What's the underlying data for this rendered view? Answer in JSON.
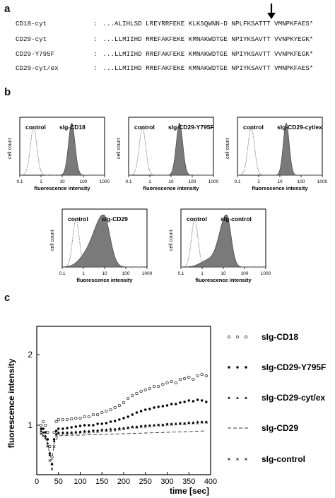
{
  "panels": {
    "a": "a",
    "b": "b",
    "c": "c"
  },
  "sequences": [
    {
      "name": "CD18-cyt",
      "colon": ":",
      "seq": "...ALIHLSD LREYRRFEKE KLKSQWNN-D NPLFKSATTT VMNPKFAES*"
    },
    {
      "name": "CD29-cyt",
      "colon": ":",
      "seq": "...LLMIIHD RREFAKFEKE KMNAKWDTGE NPIYKSAVTT VVNPKYEGK*"
    },
    {
      "name": "CD29-Y795F",
      "colon": ":",
      "seq": "...LLMIIHD RREFAKFEKE KMNAKWDTGE NPIYKSAVTT VVNPKFEGK*"
    },
    {
      "name": "CD29-cyt/ex",
      "colon": ":",
      "seq": "...LLMIIHD RREFAKFEKE KMNAKWDTGE NPIYKSAVTT VMNPKFAES*"
    }
  ],
  "histograms": [
    {
      "id": "h1",
      "control_label": "control",
      "sample_label": "sIg-CD18",
      "peak_log": 1.45,
      "width": 0.22,
      "skew": 0
    },
    {
      "id": "h2",
      "control_label": "control",
      "sample_label": "sIg-CD29-Y795F",
      "peak_log": 1.4,
      "width": 0.22,
      "skew": 0
    },
    {
      "id": "h3",
      "control_label": "control",
      "sample_label": "sIg-CD29-cyt/ex",
      "peak_log": 1.3,
      "width": 0.2,
      "skew": 0
    },
    {
      "id": "h4",
      "control_label": "control",
      "sample_label": "sIg-CD29",
      "peak_log": 0.95,
      "width": 0.42,
      "skew": 1
    },
    {
      "id": "h5",
      "control_label": "control",
      "sample_label": "sIg-control",
      "peak_log": 1.15,
      "width": 0.3,
      "skew": 1
    }
  ],
  "hist_axes": {
    "ylabel": "cell count",
    "xlabel": "fluorescence intensity",
    "ticks": [
      "0.1",
      "1",
      "10",
      "100",
      "1000"
    ]
  },
  "chart_data": {
    "type": "line",
    "xlabel": "time [sec]",
    "ylabel": "fluorescence intensity",
    "xlim": [
      0,
      400
    ],
    "ylim": [
      0.3,
      2.4
    ],
    "xticks": [
      0,
      50,
      100,
      150,
      200,
      250,
      300,
      350,
      400
    ],
    "yticks": [
      1,
      2
    ],
    "series": [
      {
        "name": "sIg-CD18",
        "marker": "open-circle",
        "x": [
          10,
          15,
          20,
          25,
          30,
          35,
          40,
          45,
          50,
          60,
          70,
          80,
          90,
          100,
          110,
          120,
          130,
          140,
          150,
          160,
          170,
          180,
          190,
          200,
          210,
          220,
          230,
          240,
          250,
          260,
          270,
          280,
          290,
          300,
          310,
          320,
          330,
          340,
          350,
          360,
          370,
          380,
          390
        ],
        "y": [
          1.0,
          1.05,
          1.0,
          0.9,
          0.7,
          0.55,
          0.9,
          1.05,
          1.08,
          1.08,
          1.08,
          1.09,
          1.1,
          1.1,
          1.12,
          1.12,
          1.15,
          1.15,
          1.18,
          1.2,
          1.22,
          1.25,
          1.28,
          1.32,
          1.38,
          1.42,
          1.45,
          1.48,
          1.5,
          1.52,
          1.55,
          1.55,
          1.58,
          1.6,
          1.62,
          1.6,
          1.65,
          1.66,
          1.68,
          1.65,
          1.7,
          1.72,
          1.7
        ]
      },
      {
        "name": "sIg-CD29-Y795F",
        "marker": "filled-dot",
        "x": [
          10,
          15,
          20,
          25,
          30,
          35,
          40,
          45,
          50,
          60,
          70,
          80,
          90,
          100,
          110,
          120,
          130,
          140,
          150,
          160,
          170,
          180,
          190,
          200,
          210,
          220,
          230,
          240,
          250,
          260,
          270,
          280,
          290,
          300,
          310,
          320,
          330,
          340,
          350,
          360,
          370,
          380,
          390
        ],
        "y": [
          0.95,
          0.95,
          0.9,
          0.8,
          0.6,
          0.45,
          0.8,
          0.92,
          0.95,
          0.95,
          0.96,
          0.97,
          0.98,
          0.99,
          1.0,
          1.0,
          1.0,
          1.02,
          1.02,
          1.03,
          1.05,
          1.06,
          1.08,
          1.1,
          1.12,
          1.15,
          1.18,
          1.2,
          1.22,
          1.23,
          1.25,
          1.26,
          1.27,
          1.28,
          1.3,
          1.3,
          1.32,
          1.33,
          1.35,
          1.34,
          1.36,
          1.35,
          1.33
        ]
      },
      {
        "name": "sIg-CD29-cyt/ex",
        "marker": "filled-triangle",
        "x": [
          10,
          15,
          20,
          25,
          30,
          35,
          40,
          45,
          50,
          60,
          70,
          80,
          90,
          100,
          110,
          120,
          130,
          140,
          150,
          160,
          170,
          180,
          190,
          200,
          210,
          220,
          230,
          240,
          250,
          260,
          270,
          280,
          290,
          300,
          310,
          320,
          330,
          340,
          350,
          360,
          370,
          380,
          390
        ],
        "y": [
          0.92,
          0.9,
          0.85,
          0.75,
          0.58,
          0.45,
          0.78,
          0.88,
          0.9,
          0.9,
          0.9,
          0.9,
          0.91,
          0.91,
          0.92,
          0.92,
          0.93,
          0.93,
          0.94,
          0.94,
          0.95,
          0.95,
          0.96,
          0.96,
          0.97,
          0.98,
          0.98,
          0.99,
          1.0,
          1.0,
          1.0,
          1.01,
          1.01,
          1.02,
          1.02,
          1.02,
          1.03,
          1.03,
          1.04,
          1.04,
          1.05,
          1.05,
          1.05
        ]
      },
      {
        "name": "sIg-CD29",
        "marker": "dashed-line",
        "x": [
          10,
          20,
          30,
          35,
          40,
          50,
          75,
          100,
          150,
          200,
          250,
          300,
          350,
          390
        ],
        "y": [
          0.88,
          0.82,
          0.6,
          0.5,
          0.75,
          0.85,
          0.86,
          0.86,
          0.87,
          0.88,
          0.89,
          0.9,
          0.91,
          0.92
        ]
      },
      {
        "name": "sIg-control",
        "marker": "cross",
        "x": [
          10,
          15,
          20,
          25,
          30,
          35,
          40,
          45,
          50,
          60,
          70,
          80,
          90,
          100,
          110,
          120,
          130,
          140,
          150,
          160,
          170,
          180,
          190,
          200,
          210,
          220,
          230,
          240,
          250,
          260,
          270,
          280,
          290,
          300,
          310,
          320,
          330,
          340,
          350,
          360,
          370,
          380,
          390
        ],
        "y": [
          0.88,
          0.85,
          0.82,
          0.7,
          0.5,
          0.38,
          0.7,
          0.85,
          0.88,
          0.88,
          0.88,
          0.89,
          0.89,
          0.9,
          0.9,
          0.9,
          0.91,
          0.91,
          0.92,
          0.92,
          0.92,
          0.93,
          0.94,
          0.95,
          0.96,
          0.97,
          0.97,
          0.98,
          0.98,
          0.99,
          1.0,
          1.0,
          1.0,
          1.01,
          1.01,
          1.02,
          1.02,
          1.02,
          1.03,
          1.03,
          1.03,
          1.04,
          1.04
        ]
      }
    ]
  },
  "legend": [
    {
      "label": "sIg-CD18",
      "marker": "open-circle"
    },
    {
      "label": "sIg-CD29-Y795F",
      "marker": "filled-dot"
    },
    {
      "label": "sIg-CD29-cyt/ex",
      "marker": "filled-triangle"
    },
    {
      "label": "sIg-CD29",
      "marker": "dashed-line"
    },
    {
      "label": "sIg-control",
      "marker": "cross"
    }
  ]
}
